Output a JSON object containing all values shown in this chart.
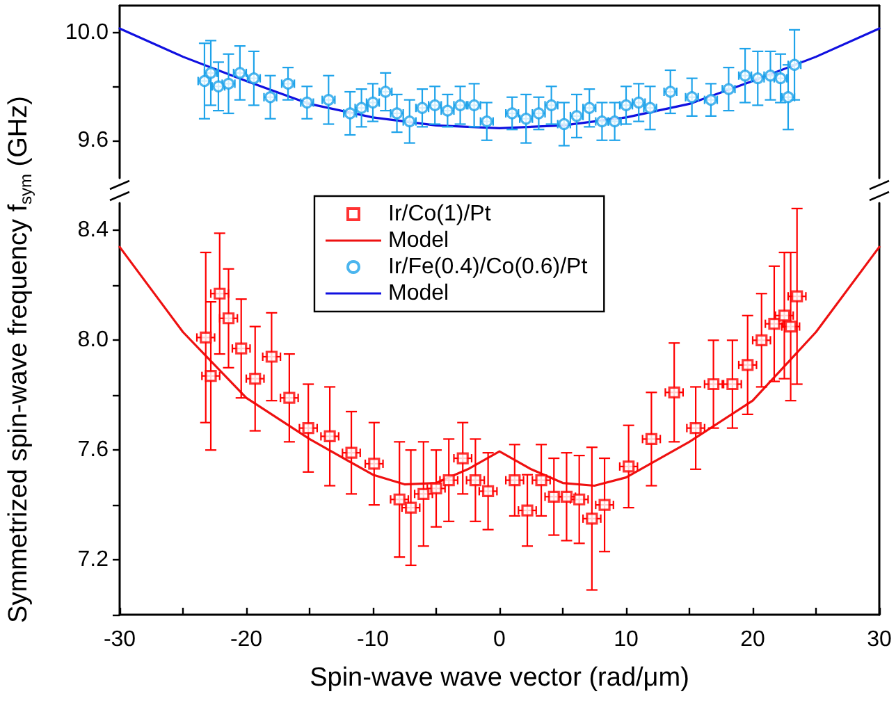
{
  "chart_data": [
    {
      "type": "scatter",
      "xlim": [
        -30,
        30
      ],
      "ylim": [
        9.46,
        10.1
      ],
      "yticks": [
        9.6,
        {
          "value": 9.8,
          "label": null
        },
        {
          "value": 10,
          "label": "10.0"
        }
      ],
      "tick_labels": "y",
      "legend": "bottom",
      "grid": false,
      "series": [
        {
          "name": "Ir/Fe(0.4)/Co(0.6)/Pt",
          "marker": "circle",
          "color": "#1ea3ea",
          "x": [
            -23.3,
            -22.8,
            -22.2,
            -21.4,
            -20.5,
            -19.4,
            -18.1,
            -16.7,
            -15.2,
            -13.5,
            -11.8,
            -10.9,
            -10.0,
            -9.0,
            -8.1,
            -7.1,
            -6.1,
            -5.1,
            -4.1,
            -3.1,
            -2.0,
            -1.0,
            1.0,
            2.1,
            3.1,
            4.1,
            5.1,
            6.1,
            7.1,
            8.1,
            9.1,
            10.0,
            11.0,
            11.9,
            13.5,
            15.2,
            16.7,
            18.1,
            19.4,
            20.4,
            21.4,
            22.2,
            22.8,
            23.3
          ],
          "values": [
            9.82,
            9.85,
            9.8,
            9.81,
            9.85,
            9.83,
            9.76,
            9.81,
            9.74,
            9.75,
            9.7,
            9.72,
            9.74,
            9.78,
            9.7,
            9.67,
            9.72,
            9.73,
            9.71,
            9.73,
            9.73,
            9.67,
            9.7,
            9.68,
            9.7,
            9.73,
            9.66,
            9.69,
            9.72,
            9.67,
            9.67,
            9.73,
            9.74,
            9.72,
            9.78,
            9.76,
            9.75,
            9.79,
            9.84,
            9.83,
            9.84,
            9.83,
            9.76,
            9.88
          ],
          "errors": [
            0.14,
            0.12,
            0.09,
            0.11,
            0.1,
            0.1,
            0.08,
            0.06,
            0.06,
            0.09,
            0.08,
            0.07,
            0.07,
            0.07,
            0.07,
            0.08,
            0.07,
            0.07,
            0.06,
            0.07,
            0.08,
            0.07,
            0.06,
            0.09,
            0.06,
            0.07,
            0.08,
            0.08,
            0.07,
            0.07,
            0.07,
            0.07,
            0.07,
            0.08,
            0.08,
            0.07,
            0.06,
            0.08,
            0.1,
            0.1,
            0.09,
            0.09,
            0.12,
            0.13
          ],
          "xerrors": [
            0.5,
            0.5,
            0.5,
            0.5,
            0.5,
            0.5,
            0.5,
            0.5,
            0.5,
            0.5,
            0.5,
            0.5,
            0.5,
            0.5,
            0.5,
            0.5,
            0.5,
            0.5,
            0.5,
            0.5,
            0.5,
            0.5,
            0.5,
            0.5,
            0.5,
            0.5,
            0.5,
            0.5,
            0.5,
            0.5,
            0.5,
            0.5,
            0.5,
            0.5,
            0.5,
            0.5,
            0.5,
            0.5,
            0.5,
            0.5,
            0.5,
            0.5,
            0.5,
            0.5
          ]
        },
        {
          "name": "Model",
          "type": "line",
          "marker": "none",
          "line_style": "solid",
          "color": "#1010e0",
          "x": [
            -30,
            -25,
            -20,
            -15,
            -10,
            -5,
            0,
            5,
            10,
            15,
            20,
            25,
            30
          ],
          "values": [
            10.015,
            9.91,
            9.82,
            9.735,
            9.685,
            9.655,
            9.645,
            9.655,
            9.685,
            9.735,
            9.82,
            9.91,
            10.015
          ]
        }
      ]
    },
    {
      "type": "scatter",
      "xlim": [
        -30,
        30
      ],
      "ylim": [
        7.0,
        8.5
      ],
      "xticks": [
        -30,
        {
          "value": -25,
          "label": null
        },
        -20,
        {
          "value": -15,
          "label": null
        },
        -10,
        {
          "value": -5,
          "label": null
        },
        0,
        {
          "value": 5,
          "label": null
        },
        10,
        {
          "value": 15,
          "label": null
        },
        20,
        {
          "value": 25,
          "label": null
        },
        30
      ],
      "yticks": [
        {
          "value": 7,
          "label": null
        },
        7.2,
        {
          "value": 7.4,
          "label": null
        },
        7.6,
        {
          "value": 7.8,
          "label": null
        },
        {
          "value": 8,
          "label": "8.0"
        },
        {
          "value": 8.2,
          "label": null
        },
        8.4
      ],
      "xlabel": "Spin-wave wave vector (rad/μm)",
      "ylabel": "Symmetrized spin-wave frequency f$_{sym}$ (GHz)",
      "legend": "top",
      "grid": false,
      "series": [
        {
          "name": "Ir/Co(1)/Pt",
          "marker": "square",
          "color": "#ff0000",
          "x": [
            -23.2,
            -22.8,
            -22.1,
            -21.4,
            -20.4,
            -19.3,
            -18.0,
            -16.6,
            -15.1,
            -13.4,
            -11.7,
            -9.9,
            -7.9,
            -7.0,
            -6.0,
            -5.0,
            -4.0,
            -2.9,
            -1.9,
            -0.9,
            1.2,
            2.2,
            3.3,
            4.3,
            5.3,
            6.3,
            7.3,
            8.3,
            10.2,
            12.0,
            13.8,
            15.5,
            16.9,
            18.4,
            19.6,
            20.7,
            21.7,
            22.5,
            23.0,
            23.5
          ],
          "values": [
            8.01,
            7.87,
            8.17,
            8.08,
            7.97,
            7.86,
            7.94,
            7.79,
            7.68,
            7.65,
            7.59,
            7.55,
            7.42,
            7.39,
            7.44,
            7.46,
            7.49,
            7.57,
            7.49,
            7.45,
            7.49,
            7.38,
            7.49,
            7.43,
            7.43,
            7.42,
            7.35,
            7.4,
            7.54,
            7.64,
            7.81,
            7.68,
            7.84,
            7.84,
            7.91,
            8.0,
            8.06,
            8.09,
            8.05,
            8.16
          ],
          "errors": [
            0.31,
            0.27,
            0.22,
            0.18,
            0.18,
            0.19,
            0.16,
            0.16,
            0.16,
            0.18,
            0.15,
            0.15,
            0.21,
            0.21,
            0.19,
            0.14,
            0.15,
            0.13,
            0.15,
            0.14,
            0.13,
            0.13,
            0.13,
            0.14,
            0.16,
            0.16,
            0.26,
            0.17,
            0.15,
            0.17,
            0.18,
            0.15,
            0.16,
            0.16,
            0.18,
            0.17,
            0.21,
            0.23,
            0.27,
            0.32
          ],
          "xerrors": [
            0.7,
            0.7,
            0.7,
            0.7,
            0.7,
            0.7,
            0.7,
            0.7,
            0.7,
            0.7,
            0.7,
            0.7,
            0.7,
            0.7,
            0.7,
            0.7,
            0.7,
            0.7,
            0.7,
            0.7,
            0.7,
            0.7,
            0.7,
            0.7,
            0.7,
            0.7,
            0.7,
            0.7,
            0.7,
            0.7,
            0.7,
            0.7,
            0.7,
            0.7,
            0.7,
            0.7,
            0.7,
            0.7,
            0.7,
            0.7
          ]
        },
        {
          "name": "Model",
          "type": "line",
          "marker": "none",
          "line_style": "solid",
          "color": "#ee1111",
          "x": [
            -30,
            -25,
            -20,
            -15,
            -10,
            -7.5,
            -5,
            -2.5,
            0,
            2.5,
            5,
            7.5,
            10,
            15,
            20,
            25,
            30
          ],
          "values": [
            8.34,
            8.03,
            7.79,
            7.64,
            7.51,
            7.475,
            7.48,
            7.53,
            7.595,
            7.53,
            7.48,
            7.47,
            7.5,
            7.63,
            7.78,
            8.03,
            8.34
          ]
        }
      ]
    }
  ]
}
